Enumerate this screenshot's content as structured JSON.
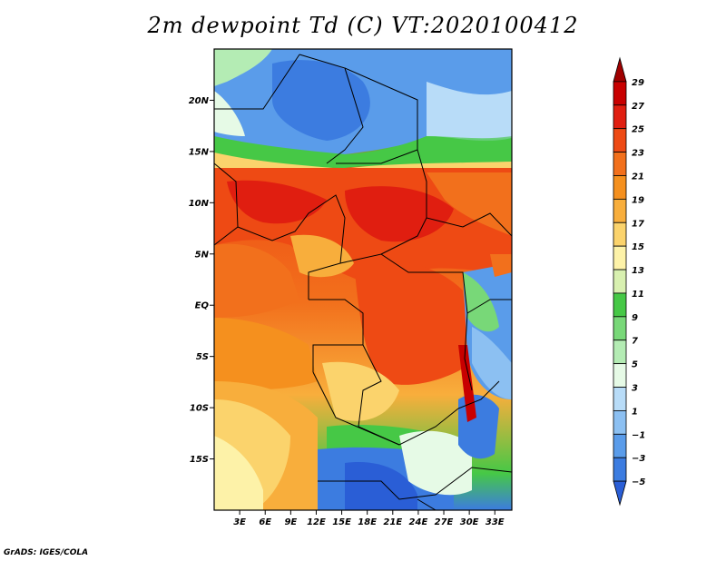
{
  "title": "2m dewpoint Td (C) VT:2020100412",
  "credit": "GrADS: IGES/COLA",
  "map": {
    "lat_labels": [
      "20N",
      "15N",
      "10N",
      "5N",
      "EQ",
      "5S",
      "10S",
      "15S"
    ],
    "lat_values": [
      20,
      15,
      10,
      5,
      0,
      -5,
      -10,
      -15
    ],
    "lon_labels": [
      "3E",
      "6E",
      "9E",
      "12E",
      "15E",
      "18E",
      "21E",
      "24E",
      "27E",
      "30E",
      "33E"
    ],
    "lon_values": [
      3,
      6,
      9,
      12,
      15,
      18,
      21,
      24,
      27,
      30,
      33
    ],
    "lon_range": [
      0,
      35
    ],
    "lat_range": [
      -20,
      25
    ]
  },
  "colorbar": {
    "labels": [
      "29",
      "27",
      "25",
      "23",
      "21",
      "19",
      "17",
      "15",
      "13",
      "11",
      "9",
      "7",
      "5",
      "3",
      "1",
      "−1",
      "−3",
      "−5"
    ],
    "colors": [
      "#a00000",
      "#c80000",
      "#e01e10",
      "#ee4a14",
      "#f2701c",
      "#f5901e",
      "#f8ae3c",
      "#fbd36c",
      "#fdf2a8",
      "#d8f0b0",
      "#46c846",
      "#78d878",
      "#b4ecb4",
      "#e6fae6",
      "#b8dcf8",
      "#8cc0f2",
      "#5a9cea",
      "#3c7ce0",
      "#2a5ed6"
    ]
  }
}
